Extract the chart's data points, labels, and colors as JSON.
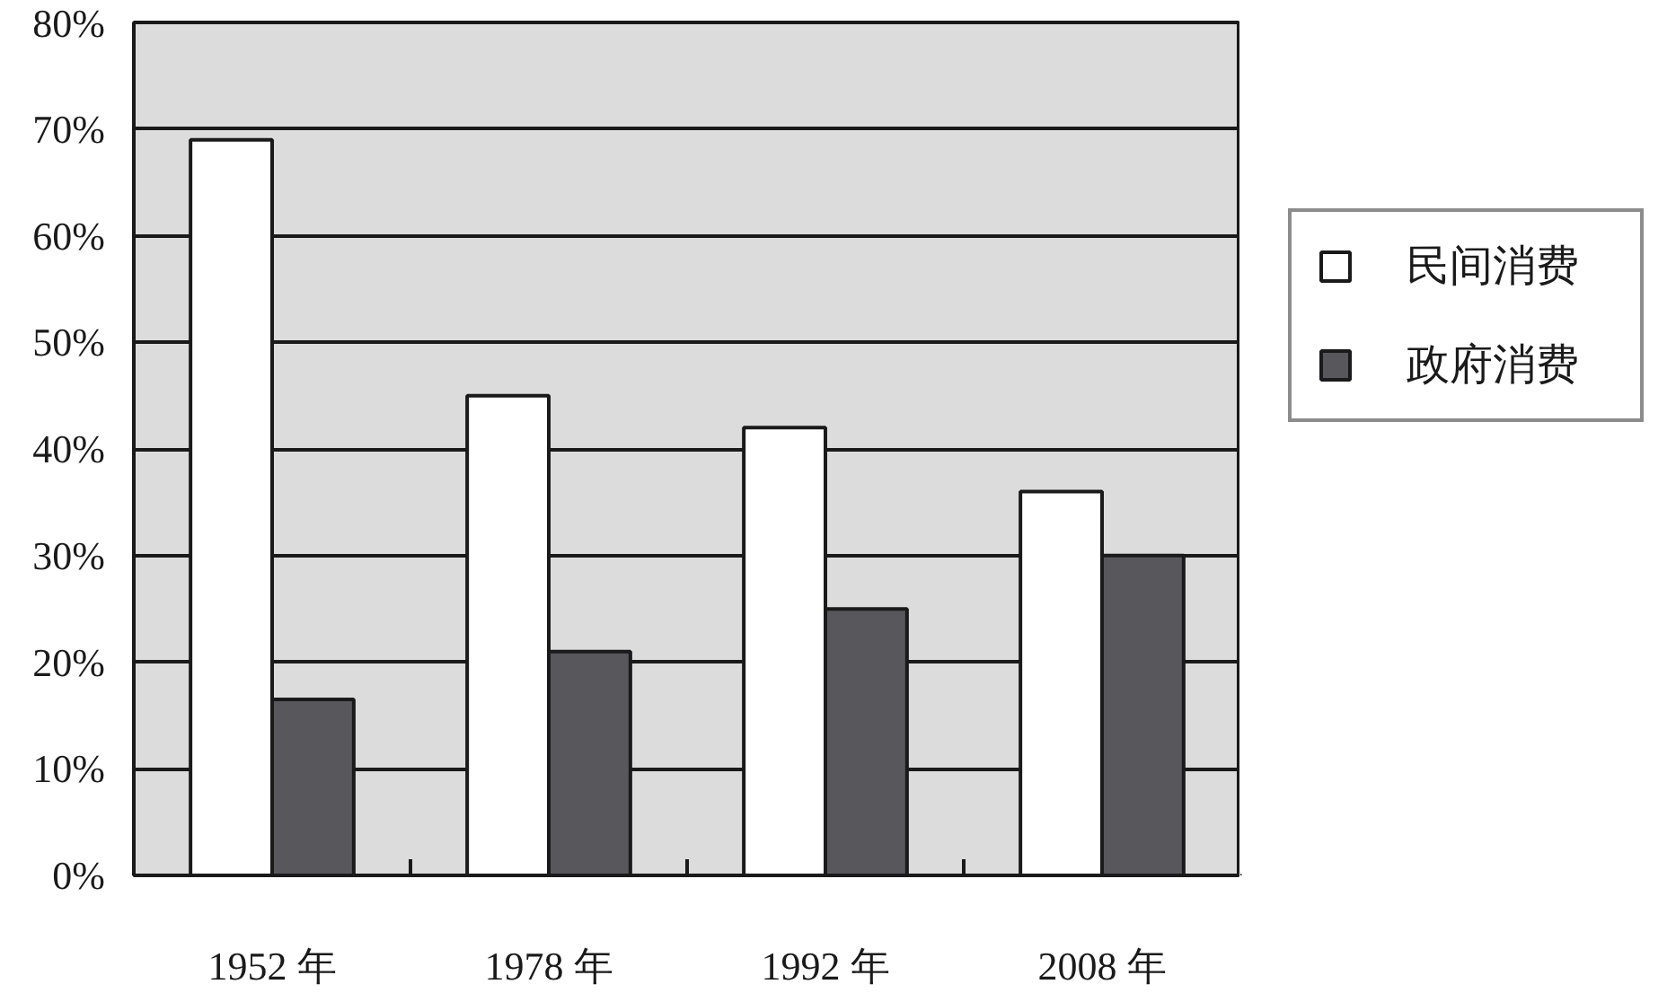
{
  "chart_data": {
    "type": "bar",
    "categories": [
      "1952 年",
      "1978 年",
      "1992 年",
      "2008 年"
    ],
    "series": [
      {
        "name": "民间消费",
        "color": "#ffffff",
        "values": [
          69,
          45,
          42,
          36
        ]
      },
      {
        "name": "政府消费",
        "color": "#58585c",
        "values": [
          16.5,
          21,
          25,
          30
        ]
      }
    ],
    "ylim": [
      0,
      80
    ],
    "yticks": [
      {
        "value": 0,
        "label": "0%"
      },
      {
        "value": 10,
        "label": "10%"
      },
      {
        "value": 20,
        "label": "20%"
      },
      {
        "value": 30,
        "label": "30%"
      },
      {
        "value": 40,
        "label": "40%"
      },
      {
        "value": 50,
        "label": "50%"
      },
      {
        "value": 60,
        "label": "60%"
      },
      {
        "value": 70,
        "label": "70%"
      },
      {
        "value": 80,
        "label": "80%"
      }
    ],
    "grid": "y",
    "legend": "right"
  }
}
